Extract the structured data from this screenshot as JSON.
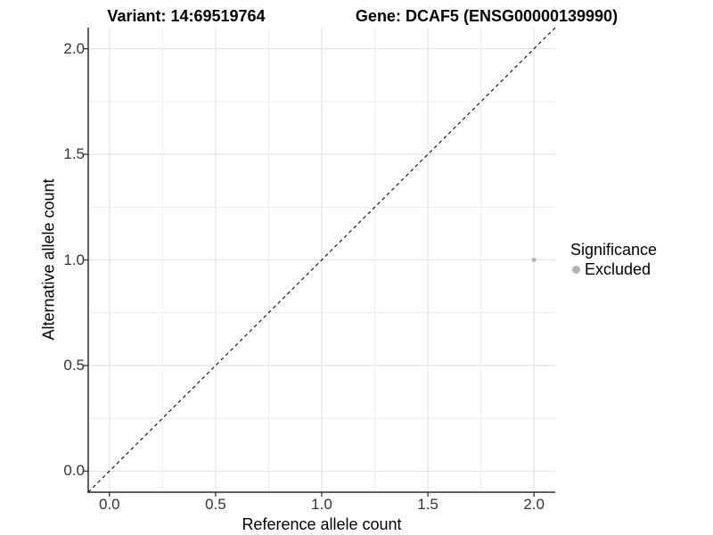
{
  "titles": {
    "variant": "Variant: 14:69519764",
    "gene": "Gene: DCAF5 (ENSG00000139990)"
  },
  "chart_data": {
    "type": "scatter",
    "xlabel": "Reference allele count",
    "ylabel": "Alternative allele count",
    "xlim": [
      -0.1,
      2.1
    ],
    "ylim": [
      -0.1,
      2.1
    ],
    "x_ticks": {
      "values": [
        0,
        0.5,
        1,
        1.5,
        2
      ],
      "labels": [
        "0.0",
        "0.5",
        "1.0",
        "1.5",
        "2.0"
      ]
    },
    "y_ticks": {
      "values": [
        0,
        0.5,
        1,
        1.5,
        2
      ],
      "labels": [
        "0.0",
        "0.5",
        "1.0",
        "1.5",
        "2.0"
      ]
    },
    "minor_grid_step": 0.25,
    "grid": true,
    "points": [
      {
        "x": 2.0,
        "y": 1.0,
        "series": "Excluded"
      }
    ],
    "reference_line": {
      "slope": 1,
      "intercept": 0,
      "style": "dashed"
    },
    "legend": {
      "title": "Significance",
      "position": "right",
      "items": [
        {
          "label": "Excluded",
          "color": "#b3b3b3"
        }
      ]
    }
  },
  "colors": {
    "background": "#ffffff",
    "grid_major": "#e3e3e3",
    "grid_minor": "#ededed",
    "axis_line": "#2b2b2b",
    "tick_mark": "#333333",
    "tick_text": "#333333",
    "title_text": "#000000",
    "point": "#b3b3b3",
    "reference_line": "#1a1a1a"
  }
}
